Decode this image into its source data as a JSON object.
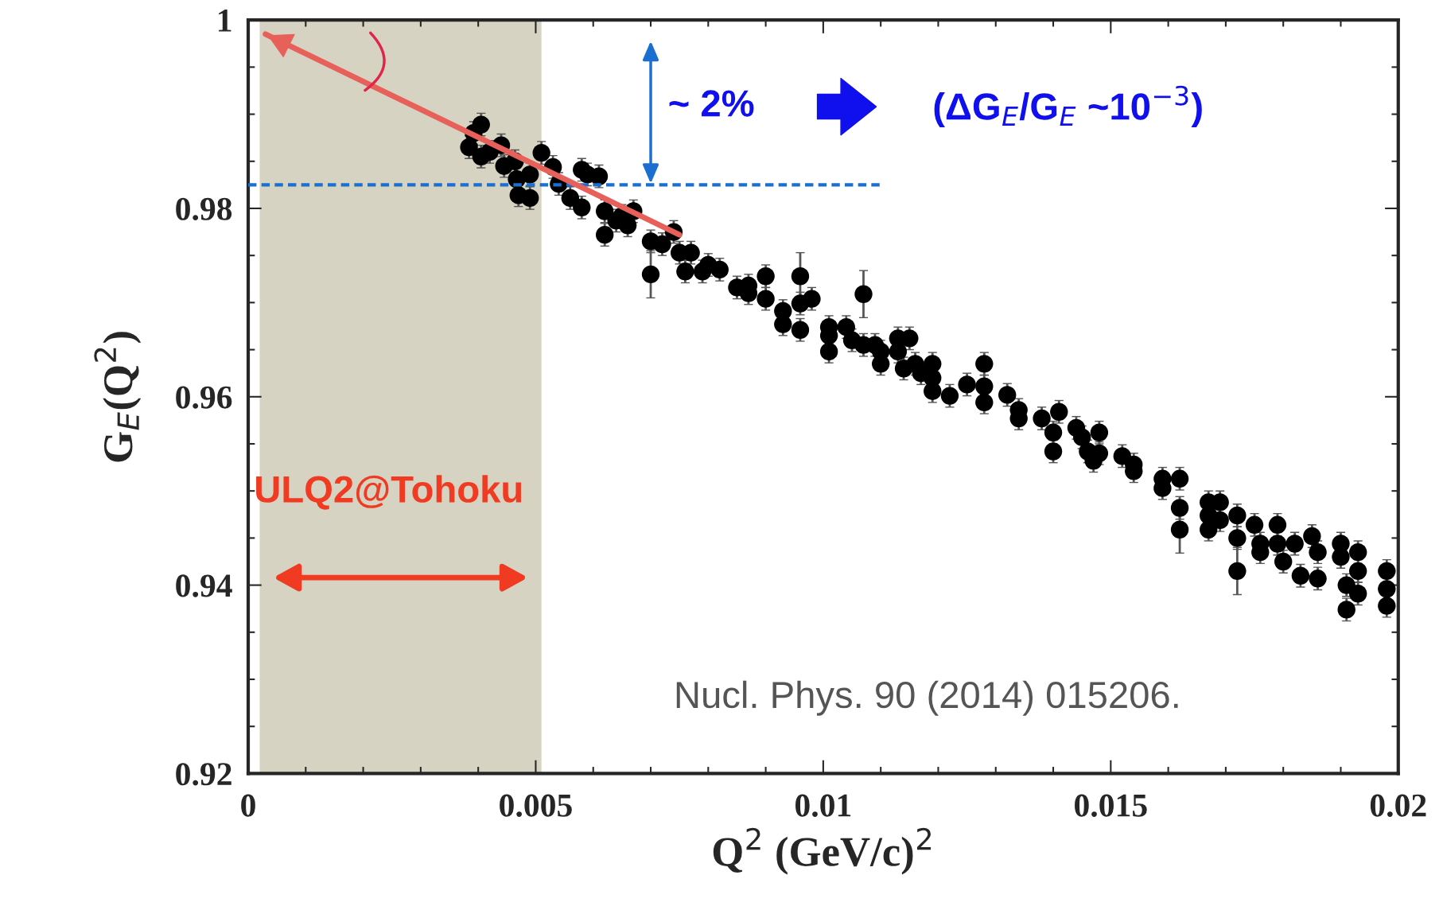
{
  "chart_data": {
    "type": "scatter",
    "xlabel": "Q$^{2}$ (GeV/c)$^{2}$",
    "ylabel": "G$_{E}$(Q$^{2}$)",
    "xlim": [
      0,
      0.02
    ],
    "ylim": [
      0.92,
      1
    ],
    "xticks": [
      0,
      0.005,
      0.01,
      0.015,
      0.02
    ],
    "yticks": [
      0.92,
      0.94,
      0.96,
      0.98,
      1
    ],
    "grid": false,
    "legend": false,
    "bands": [
      {
        "axis": "x",
        "from": 0.0002,
        "to": 0.0051,
        "label": "ULQ2@Tohoku",
        "color": "#d6d3c2"
      }
    ],
    "annotations": [
      "~ 2%",
      "(ΔG$_{E}$/G$_{E}$ ~10$^{−3}$)",
      "Nucl. Phys. 90 (2014) 015206."
    ],
    "series": [
      {
        "color": "#000000",
        "marker": "circle",
        "x": [
          0.00384,
          0.00392,
          0.00405,
          0.00405,
          0.0042,
          0.0044,
          0.00445,
          0.00464,
          0.00467,
          0.0047,
          0.0049,
          0.0049,
          0.0051,
          0.0053,
          0.0054,
          0.0056,
          0.0058,
          0.0058,
          0.0059,
          0.0061,
          0.0062,
          0.0062,
          0.0064,
          0.0065,
          0.0066,
          0.0067,
          0.007,
          0.007,
          0.0072,
          0.0074,
          0.0075,
          0.0076,
          0.0077,
          0.0079,
          0.008,
          0.0082,
          0.0085,
          0.0087,
          0.0087,
          0.009,
          0.009,
          0.0093,
          0.0093,
          0.0096,
          0.0096,
          0.0096,
          0.0098,
          0.0101,
          0.0101,
          0.0101,
          0.0104,
          0.0105,
          0.0107,
          0.0107,
          0.0109,
          0.011,
          0.011,
          0.0113,
          0.0113,
          0.0114,
          0.0115,
          0.0116,
          0.0117,
          0.0119,
          0.0119,
          0.0119,
          0.0122,
          0.0125,
          0.0128,
          0.0128,
          0.0128,
          0.0132,
          0.0134,
          0.0134,
          0.0138,
          0.014,
          0.014,
          0.0141,
          0.0144,
          0.0145,
          0.0146,
          0.0147,
          0.0148,
          0.0148,
          0.0152,
          0.0154,
          0.0154,
          0.0159,
          0.0159,
          0.0162,
          0.0162,
          0.0162,
          0.0167,
          0.0167,
          0.0167,
          0.0169,
          0.0169,
          0.0172,
          0.0172,
          0.0172,
          0.0175,
          0.0176,
          0.0176,
          0.0179,
          0.018,
          0.0179,
          0.0182,
          0.0183,
          0.0185,
          0.0186,
          0.0186,
          0.019,
          0.019,
          0.0191,
          0.0191,
          0.0193,
          0.0193,
          0.0193,
          0.0198,
          0.0198,
          0.0198
        ],
        "values": [
          0.9865,
          0.988,
          0.9889,
          0.9855,
          0.986,
          0.9867,
          0.9845,
          0.985,
          0.9831,
          0.9814,
          0.9811,
          0.9836,
          0.9859,
          0.9844,
          0.9826,
          0.9811,
          0.9841,
          0.9801,
          0.9836,
          0.9834,
          0.9797,
          0.9772,
          0.9787,
          0.9792,
          0.9782,
          0.9797,
          0.973,
          0.9765,
          0.9762,
          0.9775,
          0.9753,
          0.9733,
          0.9753,
          0.9733,
          0.974,
          0.9735,
          0.9716,
          0.971,
          0.9718,
          0.9704,
          0.9728,
          0.9677,
          0.9691,
          0.9728,
          0.9671,
          0.9699,
          0.9704,
          0.9674,
          0.9648,
          0.9665,
          0.9674,
          0.966,
          0.9709,
          0.9655,
          0.9655,
          0.9635,
          0.9648,
          0.9662,
          0.9648,
          0.963,
          0.9662,
          0.9635,
          0.9625,
          0.9635,
          0.962,
          0.9606,
          0.9601,
          0.9613,
          0.9635,
          0.9611,
          0.9594,
          0.9602,
          0.9586,
          0.9577,
          0.9577,
          0.9542,
          0.9562,
          0.9584,
          0.9567,
          0.9557,
          0.9542,
          0.9532,
          0.9562,
          0.954,
          0.9537,
          0.9528,
          0.9521,
          0.9513,
          0.9503,
          0.9513,
          0.9482,
          0.9459,
          0.9488,
          0.9474,
          0.9459,
          0.9488,
          0.9469,
          0.9474,
          0.945,
          0.9415,
          0.9464,
          0.9444,
          0.9435,
          0.9444,
          0.9425,
          0.9464,
          0.9444,
          0.941,
          0.9452,
          0.9435,
          0.9407,
          0.9444,
          0.943,
          0.94,
          0.9374,
          0.9435,
          0.9415,
          0.9391,
          0.9415,
          0.9396,
          0.9378
        ],
        "errors": [
          0.0012,
          0.0012,
          0.0012,
          0.0012,
          0.0012,
          0.0012,
          0.0012,
          0.0012,
          0.0012,
          0.0012,
          0.0012,
          0.0012,
          0.0012,
          0.0012,
          0.0012,
          0.0012,
          0.0012,
          0.0012,
          0.0012,
          0.0012,
          0.0012,
          0.0012,
          0.0012,
          0.0012,
          0.0012,
          0.0012,
          0.0025,
          0.0012,
          0.0012,
          0.0012,
          0.0012,
          0.0012,
          0.0012,
          0.0012,
          0.0012,
          0.0012,
          0.0012,
          0.0012,
          0.0012,
          0.0012,
          0.0012,
          0.0012,
          0.0012,
          0.0025,
          0.0012,
          0.0012,
          0.0012,
          0.0012,
          0.0012,
          0.0012,
          0.0012,
          0.0012,
          0.0025,
          0.0012,
          0.0012,
          0.0012,
          0.0012,
          0.0012,
          0.0012,
          0.0012,
          0.0012,
          0.0012,
          0.0012,
          0.0012,
          0.0012,
          0.0012,
          0.0012,
          0.0012,
          0.0012,
          0.0012,
          0.0012,
          0.0012,
          0.0012,
          0.0012,
          0.0012,
          0.0012,
          0.0012,
          0.0012,
          0.0012,
          0.0012,
          0.0012,
          0.0012,
          0.0012,
          0.0012,
          0.0012,
          0.0012,
          0.0012,
          0.0012,
          0.0012,
          0.0012,
          0.0012,
          0.0025,
          0.0012,
          0.0012,
          0.0012,
          0.0012,
          0.0012,
          0.0012,
          0.0012,
          0.0025,
          0.0012,
          0.0012,
          0.0012,
          0.0012,
          0.0012,
          0.0012,
          0.0012,
          0.0012,
          0.0012,
          0.0012,
          0.0012,
          0.0012,
          0.0012,
          0.0012,
          0.0012,
          0.0012,
          0.0012,
          0.0012,
          0.0012,
          0.0012,
          0.0012
        ]
      },
      {
        "type": "line",
        "color": "#1a6fd0",
        "line_style": "dashed",
        "x": [
          0,
          0.011
        ],
        "values": [
          0.9825,
          0.9825
        ]
      },
      {
        "type": "line",
        "color": "#e8605a",
        "line_style": "solid",
        "x": [
          0.0075,
          0.0003
        ],
        "values": [
          0.9772,
          0.9985
        ]
      }
    ]
  }
}
